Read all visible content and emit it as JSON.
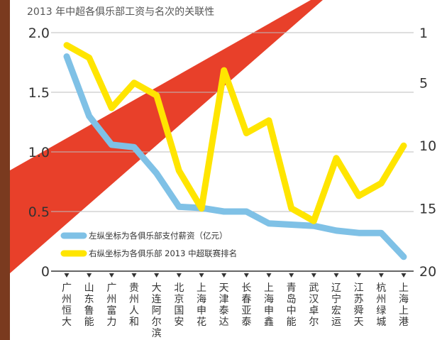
{
  "chart_data": {
    "type": "line",
    "title": "2013 年中超各俱乐部工资与名次的关联性",
    "categories": [
      "广州恒大",
      "山东鲁能",
      "广州富力",
      "贵州人和",
      "大连阿尔滨",
      "北京国安",
      "上海申花",
      "天津泰达",
      "长春亚泰",
      "上海申鑫",
      "青岛中能",
      "武汉卓尔",
      "辽宁宏运",
      "江苏舜天",
      "杭州绿城",
      "上海上港"
    ],
    "left_axis": {
      "ylim": [
        0,
        2.0
      ],
      "ticks": [
        "0",
        "0.5",
        "1.0",
        "1.5",
        "2.0"
      ]
    },
    "right_axis": {
      "ylim": [
        1,
        20
      ],
      "inverted": true,
      "ticks": [
        "1",
        "5",
        "10",
        "15",
        "20"
      ]
    },
    "series": [
      {
        "name": "左纵坐标为各俱乐部支付薪资（亿元）",
        "axis": "left",
        "color": "#7fc1e6",
        "values": [
          1.8,
          1.3,
          1.06,
          1.04,
          0.82,
          0.54,
          0.53,
          0.5,
          0.5,
          0.4,
          0.39,
          0.38,
          0.34,
          0.32,
          0.32,
          0.12
        ]
      },
      {
        "name": "右纵坐标为各俱乐部 2013 中超联赛排名",
        "axis": "right",
        "color": "#ffe500",
        "values": [
          2,
          3,
          7,
          5,
          6,
          12,
          15,
          4,
          9,
          8,
          15,
          16,
          11,
          14,
          13,
          10
        ]
      }
    ],
    "background_band": {
      "color": "#e8402a"
    },
    "grid": true,
    "legend_position": "bottom-left"
  }
}
